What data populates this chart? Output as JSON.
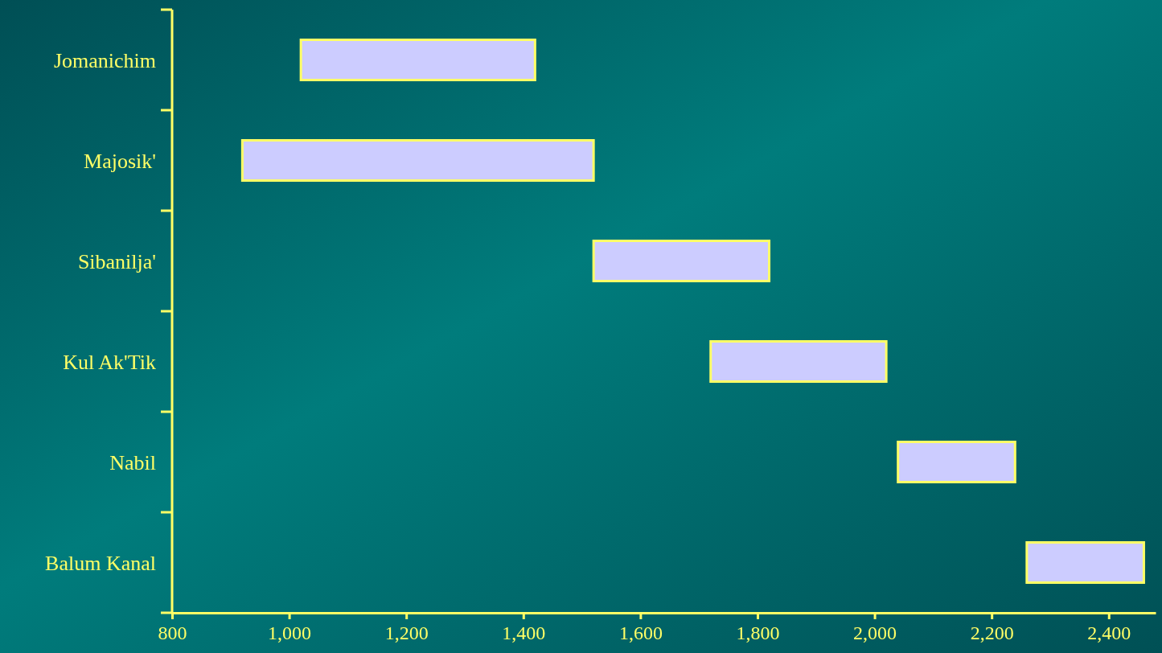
{
  "chart_data": {
    "type": "bar",
    "orientation": "horizontal",
    "categories": [
      "Jomanichim",
      "Majosik'",
      "Sibanilja'",
      "Kul Ak'Tik",
      "Nabil",
      "Balum Kanal"
    ],
    "base": [
      1020,
      920,
      1520,
      1720,
      2040,
      2260
    ],
    "values": [
      400,
      600,
      300,
      300,
      200,
      200
    ],
    "color": "#ccccff",
    "xlim": [
      800,
      2480
    ],
    "xticks": [
      {
        "value": 800,
        "label": "800"
      },
      {
        "value": 1000,
        "label": "1,000"
      },
      {
        "value": 1200,
        "label": "1,200"
      },
      {
        "value": 1400,
        "label": "1,400"
      },
      {
        "value": 1600,
        "label": "1,600"
      },
      {
        "value": 1800,
        "label": "1,800"
      },
      {
        "value": 2000,
        "label": "2,000"
      },
      {
        "value": 2200,
        "label": "2,200"
      },
      {
        "value": 2400,
        "label": "2,400"
      }
    ],
    "grid": false
  }
}
